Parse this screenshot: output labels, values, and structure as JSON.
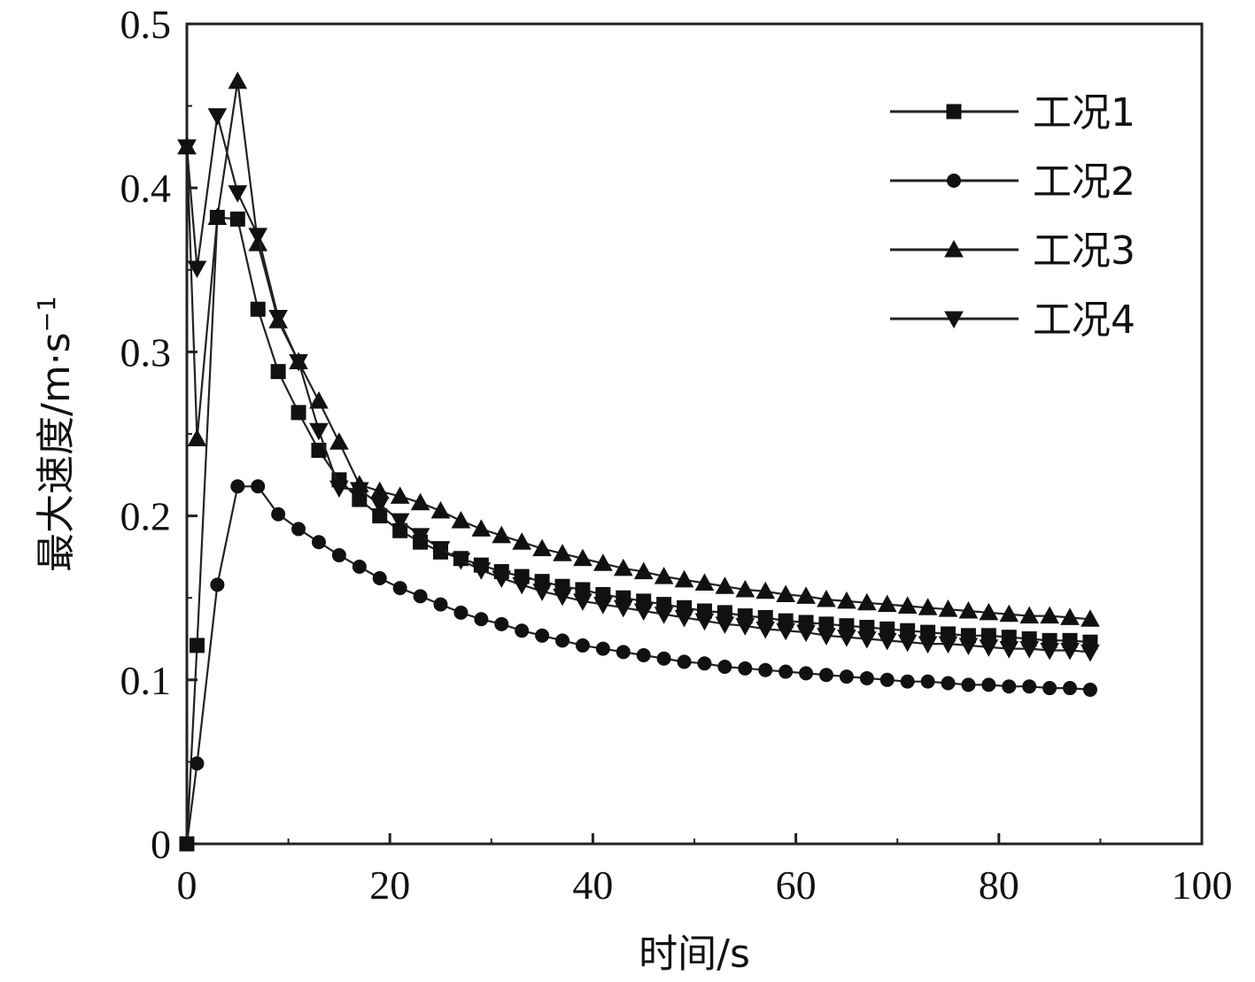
{
  "chart_data": {
    "type": "line",
    "title": "",
    "xlabel": "时间/s",
    "ylabel": "最大速度/m·s",
    "ylabel_superscript": "−1",
    "xlim": [
      0,
      100
    ],
    "ylim": [
      0,
      0.5
    ],
    "xticks": [
      0,
      20,
      40,
      60,
      80,
      100
    ],
    "yticks": [
      0,
      0.1,
      0.2,
      0.3,
      0.4,
      0.5
    ],
    "xtick_labels": [
      "0",
      "20",
      "40",
      "60",
      "80",
      "100"
    ],
    "ytick_labels": [
      "0",
      "0.1",
      "0.2",
      "0.3",
      "0.4",
      "0.5"
    ],
    "grid": false,
    "legend_position": "top-right",
    "x": [
      0,
      1,
      3,
      5,
      7,
      9,
      11,
      13,
      15,
      17,
      19,
      21,
      23,
      25,
      27,
      29,
      31,
      33,
      35,
      37,
      39,
      41,
      43,
      45,
      47,
      49,
      51,
      53,
      55,
      57,
      59,
      61,
      63,
      65,
      67,
      69,
      71,
      73,
      75,
      77,
      79,
      81,
      83,
      85,
      87,
      89
    ],
    "series": [
      {
        "name": "工况1",
        "marker": "square",
        "values": [
          0,
          0.121,
          0.382,
          0.381,
          0.326,
          0.288,
          0.263,
          0.24,
          0.222,
          0.21,
          0.2,
          0.191,
          0.184,
          0.178,
          0.174,
          0.17,
          0.166,
          0.163,
          0.16,
          0.157,
          0.155,
          0.152,
          0.15,
          0.148,
          0.146,
          0.144,
          0.142,
          0.141,
          0.139,
          0.138,
          0.136,
          0.135,
          0.134,
          0.133,
          0.132,
          0.131,
          0.13,
          0.129,
          0.128,
          0.127,
          0.127,
          0.126,
          0.125,
          0.124,
          0.124,
          0.123
        ]
      },
      {
        "name": "工况2",
        "marker": "circle",
        "values": [
          0,
          0.049,
          0.158,
          0.218,
          0.218,
          0.201,
          0.192,
          0.184,
          0.176,
          0.169,
          0.162,
          0.156,
          0.151,
          0.146,
          0.141,
          0.137,
          0.134,
          0.13,
          0.127,
          0.124,
          0.121,
          0.119,
          0.117,
          0.115,
          0.113,
          0.111,
          0.11,
          0.108,
          0.107,
          0.106,
          0.105,
          0.104,
          0.103,
          0.102,
          0.101,
          0.1,
          0.099,
          0.099,
          0.098,
          0.097,
          0.097,
          0.096,
          0.096,
          0.095,
          0.095,
          0.094
        ]
      },
      {
        "name": "工况3",
        "marker": "triangle-up",
        "values": [
          0.425,
          0.247,
          0.382,
          0.465,
          0.366,
          0.319,
          0.294,
          0.27,
          0.245,
          0.219,
          0.215,
          0.212,
          0.208,
          0.203,
          0.197,
          0.192,
          0.188,
          0.184,
          0.18,
          0.177,
          0.174,
          0.171,
          0.168,
          0.166,
          0.163,
          0.161,
          0.159,
          0.157,
          0.155,
          0.154,
          0.152,
          0.151,
          0.149,
          0.148,
          0.147,
          0.146,
          0.145,
          0.144,
          0.143,
          0.142,
          0.141,
          0.14,
          0.139,
          0.139,
          0.138,
          0.137
        ]
      },
      {
        "name": "工况4",
        "marker": "triangle-down",
        "values": [
          0.425,
          0.351,
          0.444,
          0.397,
          0.371,
          0.321,
          0.294,
          0.252,
          0.217,
          0.216,
          0.207,
          0.197,
          0.188,
          0.18,
          0.173,
          0.167,
          0.162,
          0.158,
          0.154,
          0.151,
          0.148,
          0.146,
          0.144,
          0.142,
          0.14,
          0.138,
          0.136,
          0.134,
          0.133,
          0.131,
          0.13,
          0.129,
          0.127,
          0.126,
          0.125,
          0.124,
          0.123,
          0.122,
          0.122,
          0.121,
          0.12,
          0.119,
          0.119,
          0.118,
          0.118,
          0.117
        ]
      }
    ]
  }
}
